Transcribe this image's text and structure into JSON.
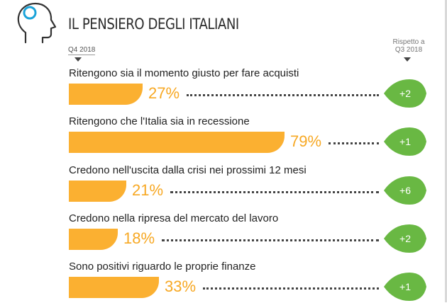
{
  "header": {
    "title": "IL PENSIERO DEGLI ITALIANI",
    "period_label": "Q4 2018",
    "compare_label_line1": "Rispetto a",
    "compare_label_line2": "Q3 2018",
    "icon": "head-profile-icon"
  },
  "colors": {
    "bar": "#fbb031",
    "percent_text": "#f7a823",
    "delta_badge": "#69b843",
    "icon": "#1aa3d9"
  },
  "chart_data": {
    "type": "bar",
    "orientation": "horizontal",
    "xlim": [
      0,
      100
    ],
    "unit": "%",
    "categories": [
      "Ritengono sia il momento giusto per fare acquisti",
      "Ritengono che l'Italia sia in recessione",
      "Credono nell'uscita dalla crisi nei prossimi 12 mesi",
      "Credono nella ripresa del mercato del lavoro",
      "Sono positivi riguardo le proprie finanze"
    ],
    "values": [
      27,
      79,
      21,
      18,
      33
    ],
    "value_labels": [
      "27%",
      "79%",
      "21%",
      "18%",
      "33%"
    ],
    "deltas": [
      "+2",
      "+1",
      "+6",
      "+2",
      "+1"
    ]
  }
}
